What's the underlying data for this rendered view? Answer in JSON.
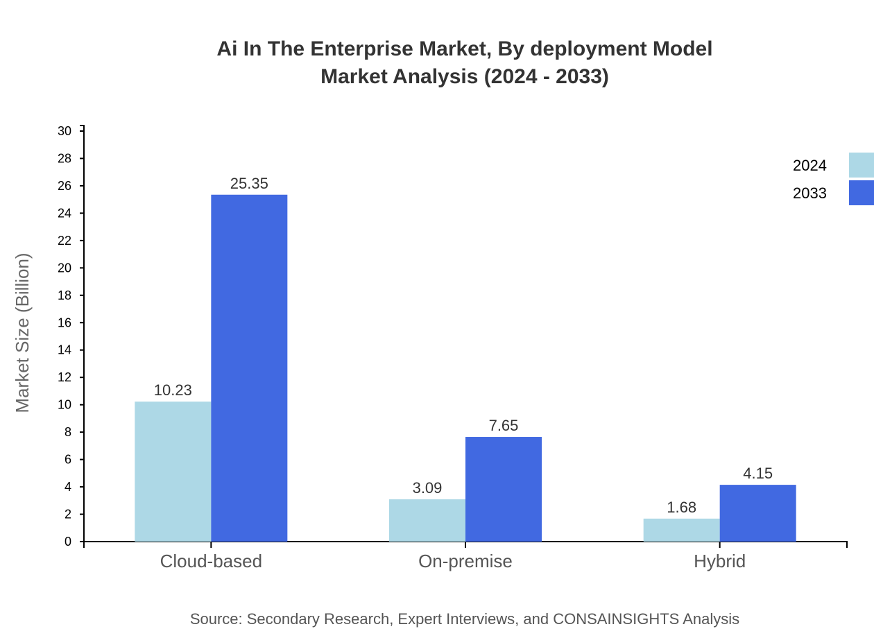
{
  "chart_data": {
    "type": "bar",
    "title": [
      "Ai In The Enterprise Market, By deployment Model",
      "Market Analysis (2024 - 2033)"
    ],
    "ylabel": "Market Size (Billion)",
    "xlabel": "",
    "ylim": [
      0,
      30
    ],
    "yticks": [
      0,
      2,
      4,
      6,
      8,
      10,
      12,
      14,
      16,
      18,
      20,
      22,
      24,
      26,
      28,
      30
    ],
    "categories": [
      "Cloud-based",
      "On-premise",
      "Hybrid"
    ],
    "series": [
      {
        "name": "2024",
        "color": "#add8e6",
        "values": [
          10.23,
          3.09,
          1.68
        ]
      },
      {
        "name": "2033",
        "color": "#4169e1",
        "values": [
          25.35,
          7.65,
          4.15
        ]
      }
    ],
    "legend": "top-right",
    "grid": false,
    "source": "Source: Secondary Research, Expert Interviews, and CONSAINSIGHTS Analysis"
  }
}
